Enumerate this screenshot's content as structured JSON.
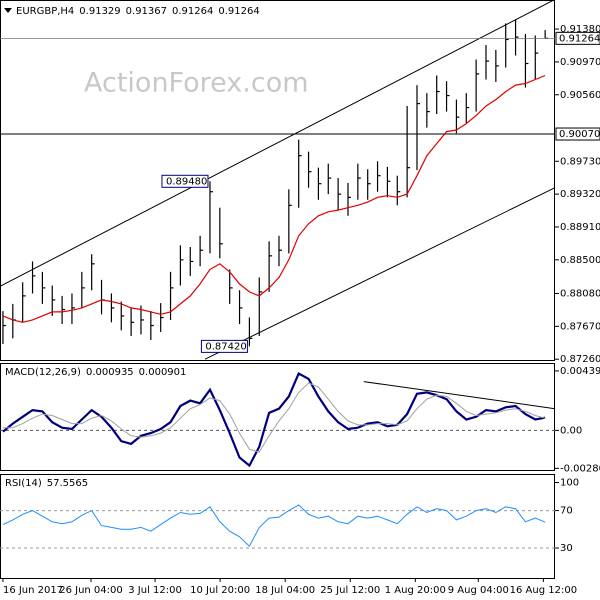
{
  "chart_data": [
    {
      "type": "ohlc",
      "title": "EURGBP,H4",
      "watermark": "ActionForex.com",
      "last_open": 0.91329,
      "xlim": [
        -0.3,
        56
      ],
      "ylim": [
        0.8725,
        0.9173
      ],
      "yticks": [
        {
          "value": 0.9138,
          "label": "0.91380"
        },
        {
          "value": 0.9097,
          "label": "0.90970"
        },
        {
          "value": 0.9056,
          "label": "0.90560"
        },
        {
          "value": 0.8973,
          "label": "0.89730"
        },
        {
          "value": 0.8932,
          "label": "0.89320"
        },
        {
          "value": 0.8891,
          "label": "0.88910"
        },
        {
          "value": 0.885,
          "label": "0.88500"
        },
        {
          "value": 0.8808,
          "label": "0.88080"
        },
        {
          "value": 0.8767,
          "label": "0.87670"
        },
        {
          "value": 0.8726,
          "label": "0.87260"
        }
      ],
      "color": "#000000",
      "high": [
        0.8786,
        0.8795,
        0.8822,
        0.8848,
        0.8835,
        0.8818,
        0.8805,
        0.8808,
        0.8835,
        0.8857,
        0.8825,
        0.8808,
        0.8798,
        0.879,
        0.8793,
        0.8786,
        0.8796,
        0.8835,
        0.8868,
        0.8866,
        0.888,
        0.8948,
        0.8915,
        0.8838,
        0.8812,
        0.8778,
        0.8828,
        0.8873,
        0.888,
        0.8938,
        0.9,
        0.8985,
        0.8965,
        0.897,
        0.8952,
        0.8946,
        0.897,
        0.8963,
        0.8973,
        0.8966,
        0.8955,
        0.9042,
        0.9068,
        0.9058,
        0.908,
        0.9073,
        0.905,
        0.9058,
        0.91,
        0.9118,
        0.9112,
        0.9145,
        0.915,
        0.9132,
        0.913,
        0.91367
      ],
      "low": [
        0.8745,
        0.8752,
        0.8772,
        0.8808,
        0.8795,
        0.878,
        0.877,
        0.877,
        0.879,
        0.8812,
        0.8782,
        0.8772,
        0.8762,
        0.8755,
        0.8757,
        0.875,
        0.876,
        0.8775,
        0.8818,
        0.883,
        0.8842,
        0.8858,
        0.8852,
        0.8795,
        0.877,
        0.8742,
        0.8755,
        0.881,
        0.8842,
        0.8858,
        0.8915,
        0.894,
        0.8925,
        0.8932,
        0.8912,
        0.8905,
        0.8925,
        0.8925,
        0.8935,
        0.8928,
        0.8918,
        0.8928,
        0.8962,
        0.9015,
        0.9032,
        0.9035,
        0.9008,
        0.902,
        0.9035,
        0.9075,
        0.9072,
        0.909,
        0.9105,
        0.9065,
        0.9075,
        0.91264
      ],
      "close": [
        0.8768,
        0.8775,
        0.8805,
        0.883,
        0.8815,
        0.88,
        0.8788,
        0.879,
        0.8815,
        0.8845,
        0.88,
        0.879,
        0.878,
        0.8772,
        0.8775,
        0.8768,
        0.8778,
        0.8815,
        0.885,
        0.8848,
        0.8862,
        0.8935,
        0.887,
        0.8815,
        0.879,
        0.8752,
        0.881,
        0.8855,
        0.8862,
        0.8918,
        0.898,
        0.896,
        0.8945,
        0.8952,
        0.8932,
        0.8928,
        0.8952,
        0.8945,
        0.8955,
        0.8948,
        0.8935,
        0.8965,
        0.9045,
        0.9035,
        0.906,
        0.9055,
        0.9028,
        0.904,
        0.9082,
        0.9098,
        0.9092,
        0.9125,
        0.9128,
        0.9095,
        0.9108,
        0.91264
      ],
      "ma": {
        "color": "#e00000",
        "values": [
          0.878,
          0.8775,
          0.8772,
          0.8775,
          0.878,
          0.8785,
          0.8785,
          0.8787,
          0.879,
          0.8795,
          0.88,
          0.8798,
          0.8795,
          0.879,
          0.8788,
          0.8785,
          0.8782,
          0.8785,
          0.8795,
          0.8805,
          0.882,
          0.8838,
          0.8845,
          0.8835,
          0.882,
          0.881,
          0.8805,
          0.8815,
          0.8828,
          0.885,
          0.888,
          0.8895,
          0.8905,
          0.891,
          0.8912,
          0.8915,
          0.8918,
          0.8922,
          0.8928,
          0.893,
          0.8928,
          0.8932,
          0.8955,
          0.898,
          0.8995,
          0.901,
          0.9012,
          0.902,
          0.903,
          0.9042,
          0.905,
          0.906,
          0.9068,
          0.907,
          0.9075,
          0.908
        ]
      },
      "level": {
        "value": 0.9007,
        "label": "0.90070"
      },
      "annotations": [
        {
          "x": 21,
          "value": 0.8948,
          "label": "0.89480"
        },
        {
          "x": 25,
          "value": 0.8742,
          "label": "0.87420"
        }
      ],
      "trendlines": [
        {
          "x": [
            -0.3,
            56
          ],
          "y": [
            0.8817,
            0.9175
          ]
        },
        {
          "x": [
            20.5,
            56
          ],
          "y": [
            0.8726,
            0.894
          ]
        }
      ]
    },
    {
      "type": "line",
      "title": "MACD(12,26,9)",
      "xlim": [
        -0.3,
        56
      ],
      "ylim": [
        -0.003,
        0.0049
      ],
      "yticks": [
        0.00439,
        {
          "value": 0,
          "label": "0.00"
        },
        -0.002805
      ],
      "zero_line": true,
      "series": [
        {
          "name": "MACD",
          "color": "#00007f",
          "width": 2.2,
          "values": [
            -0.0001,
            0.0005,
            0.001,
            0.0015,
            0.0014,
            0.0006,
            0.0002,
            0.0001,
            0.0008,
            0.0015,
            0.001,
            0.0002,
            -0.0008,
            -0.001,
            -0.0004,
            -0.0002,
            0.0001,
            0.0006,
            0.0018,
            0.0022,
            0.002,
            0.003,
            0.0015,
            -0.0002,
            -0.002,
            -0.0026,
            -0.0012,
            0.0013,
            0.0016,
            0.0025,
            0.0042,
            0.0038,
            0.0025,
            0.0014,
            0.0006,
            0.0001,
            0.0002,
            0.0005,
            0.0006,
            0.0003,
            0.0004,
            0.0012,
            0.0027,
            0.0028,
            0.0026,
            0.0023,
            0.0014,
            0.0008,
            0.001,
            0.0015,
            0.0014,
            0.0017,
            0.0018,
            0.0012,
            0.0008,
            0.000935
          ]
        },
        {
          "name": "Signal",
          "color": "#a0a0a0",
          "width": 1,
          "values": [
            0.0002,
            0.0002,
            0.0005,
            0.0009,
            0.0012,
            0.0011,
            0.0008,
            0.0005,
            0.0005,
            0.0009,
            0.0011,
            0.0007,
            0.0001,
            -0.0004,
            -0.0005,
            -0.0004,
            -0.0002,
            0.0002,
            0.0009,
            0.0016,
            0.0019,
            0.0024,
            0.0022,
            0.0012,
            -0.0002,
            -0.0014,
            -0.0016,
            -0.0004,
            0.0007,
            0.0016,
            0.0028,
            0.0035,
            0.0032,
            0.0023,
            0.0014,
            0.0007,
            0.0004,
            0.0004,
            0.0005,
            0.0005,
            0.0004,
            0.0007,
            0.0016,
            0.0023,
            0.0026,
            0.0025,
            0.002,
            0.0014,
            0.0011,
            0.0012,
            0.0013,
            0.0015,
            0.0016,
            0.0014,
            0.0011,
            0.000901
          ]
        }
      ],
      "trendlines": [
        {
          "x": [
            36.6,
            56
          ],
          "y": [
            0.0036,
            0.0016
          ]
        }
      ]
    },
    {
      "type": "line",
      "title": "RSI(14)",
      "xlim": [
        -0.3,
        56
      ],
      "ylim": [
        -2,
        108
      ],
      "yticks": [
        100,
        70,
        30
      ],
      "dashed_levels": [
        70,
        30
      ],
      "series": [
        {
          "name": "RSI",
          "color": "#1e90ff",
          "width": 1,
          "values": [
            55,
            60,
            66,
            70,
            64,
            58,
            56,
            58,
            65,
            70,
            54,
            52,
            50,
            50,
            52,
            48,
            55,
            62,
            68,
            66,
            67,
            74,
            58,
            48,
            42,
            32,
            52,
            62,
            63,
            70,
            76,
            66,
            62,
            64,
            58,
            56,
            64,
            62,
            64,
            60,
            56,
            66,
            74,
            68,
            72,
            70,
            60,
            64,
            70,
            72,
            68,
            74,
            72,
            58,
            62,
            57.5565
          ]
        }
      ],
      "xticks": [
        {
          "value": 0,
          "label": "16 Jun 2017"
        },
        {
          "value": 8.93,
          "label": "26 Jun 04:00"
        },
        {
          "value": 15.43,
          "label": "3 Jul 12:00"
        },
        {
          "value": 22.03,
          "label": "10 Jul 20:00"
        },
        {
          "value": 28.63,
          "label": "18 Jul 04:00"
        },
        {
          "value": 35.23,
          "label": "25 Jul 12:00"
        },
        {
          "value": 41.83,
          "label": "1 Aug 20:00"
        },
        {
          "value": 48.22,
          "label": "9 Aug 04:00"
        },
        {
          "value": 54.82,
          "label": "16 Aug 12:00"
        }
      ]
    }
  ]
}
